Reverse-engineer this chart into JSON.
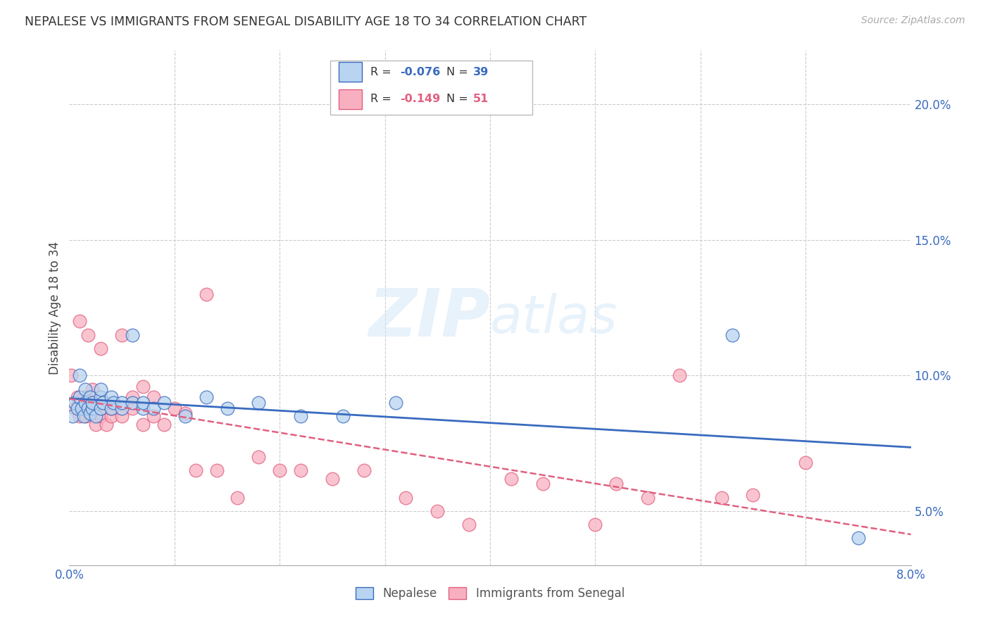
{
  "title": "NEPALESE VS IMMIGRANTS FROM SENEGAL DISABILITY AGE 18 TO 34 CORRELATION CHART",
  "source": "Source: ZipAtlas.com",
  "ylabel": "Disability Age 18 to 34",
  "xlim": [
    0.0,
    0.08
  ],
  "ylim": [
    0.03,
    0.22
  ],
  "yticks": [
    0.05,
    0.1,
    0.15,
    0.2
  ],
  "ytick_labels": [
    "5.0%",
    "10.0%",
    "15.0%",
    "20.0%"
  ],
  "nepalese_color": "#b8d4f0",
  "senegal_color": "#f8b0c0",
  "nepalese_line_color": "#3a6bbf",
  "senegal_line_color": "#e06080",
  "watermark": "ZIPatlas",
  "nepalese_x": [
    0.0003,
    0.0005,
    0.0008,
    0.001,
    0.001,
    0.0012,
    0.0014,
    0.0015,
    0.0015,
    0.0018,
    0.002,
    0.002,
    0.0022,
    0.0022,
    0.0025,
    0.003,
    0.003,
    0.003,
    0.0032,
    0.004,
    0.004,
    0.0042,
    0.005,
    0.005,
    0.006,
    0.006,
    0.007,
    0.007,
    0.008,
    0.009,
    0.011,
    0.013,
    0.015,
    0.018,
    0.022,
    0.026,
    0.031,
    0.063,
    0.075
  ],
  "nepalese_y": [
    0.085,
    0.09,
    0.088,
    0.092,
    0.1,
    0.088,
    0.085,
    0.09,
    0.095,
    0.088,
    0.086,
    0.092,
    0.088,
    0.09,
    0.085,
    0.088,
    0.092,
    0.095,
    0.09,
    0.088,
    0.092,
    0.09,
    0.088,
    0.09,
    0.115,
    0.09,
    0.088,
    0.09,
    0.088,
    0.09,
    0.085,
    0.092,
    0.088,
    0.09,
    0.085,
    0.085,
    0.09,
    0.115,
    0.04
  ],
  "senegal_x": [
    0.0002,
    0.0005,
    0.0008,
    0.001,
    0.001,
    0.0012,
    0.0014,
    0.0016,
    0.0018,
    0.002,
    0.002,
    0.0022,
    0.0025,
    0.003,
    0.003,
    0.003,
    0.0035,
    0.004,
    0.004,
    0.005,
    0.005,
    0.006,
    0.006,
    0.007,
    0.007,
    0.008,
    0.008,
    0.009,
    0.01,
    0.011,
    0.012,
    0.013,
    0.014,
    0.016,
    0.018,
    0.02,
    0.022,
    0.025,
    0.028,
    0.032,
    0.035,
    0.038,
    0.042,
    0.045,
    0.05,
    0.052,
    0.055,
    0.058,
    0.062,
    0.065,
    0.07
  ],
  "senegal_y": [
    0.1,
    0.088,
    0.092,
    0.085,
    0.12,
    0.088,
    0.092,
    0.085,
    0.115,
    0.088,
    0.092,
    0.095,
    0.082,
    0.085,
    0.088,
    0.11,
    0.082,
    0.085,
    0.088,
    0.085,
    0.115,
    0.088,
    0.092,
    0.082,
    0.096,
    0.085,
    0.092,
    0.082,
    0.088,
    0.086,
    0.065,
    0.13,
    0.065,
    0.055,
    0.07,
    0.065,
    0.065,
    0.062,
    0.065,
    0.055,
    0.05,
    0.045,
    0.062,
    0.06,
    0.045,
    0.06,
    0.055,
    0.1,
    0.055,
    0.056,
    0.068
  ]
}
